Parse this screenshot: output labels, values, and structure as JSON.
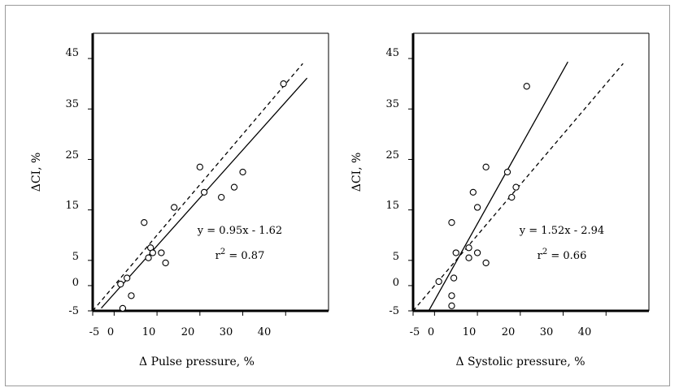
{
  "chart_data": [
    {
      "type": "scatter",
      "title": "",
      "xlabel": "Δ Pulse pressure, %",
      "ylabel": "ΔCI, %",
      "xlim": [
        -5,
        50
      ],
      "ylim": [
        -5,
        50
      ],
      "xticks": [
        -5,
        0,
        10,
        20,
        30,
        40
      ],
      "yticks": [
        -5,
        0,
        5,
        15,
        25,
        35,
        45
      ],
      "grid": false,
      "points": [
        {
          "x": 1.5,
          "y": 0.3
        },
        {
          "x": 2.0,
          "y": -4.5
        },
        {
          "x": 3.0,
          "y": 1.5
        },
        {
          "x": 4.0,
          "y": -2.0
        },
        {
          "x": 7.0,
          "y": 12.5
        },
        {
          "x": 8.0,
          "y": 5.5
        },
        {
          "x": 8.5,
          "y": 7.5
        },
        {
          "x": 9.0,
          "y": 6.5
        },
        {
          "x": 11.0,
          "y": 6.5
        },
        {
          "x": 12.0,
          "y": 4.5
        },
        {
          "x": 14.0,
          "y": 15.5
        },
        {
          "x": 20.0,
          "y": 23.5
        },
        {
          "x": 21.0,
          "y": 18.5
        },
        {
          "x": 25.0,
          "y": 17.5
        },
        {
          "x": 28.0,
          "y": 19.5
        },
        {
          "x": 30.0,
          "y": 22.5
        },
        {
          "x": 39.5,
          "y": 40.0
        }
      ],
      "fit_line": {
        "slope": 0.95,
        "intercept": -1.62,
        "x_range": [
          -3,
          45
        ],
        "style": "solid"
      },
      "identity_line": {
        "x_range": [
          -5,
          44
        ],
        "style": "dashed"
      },
      "annotations": [
        "y = 0.95x - 1.62",
        "r",
        "2",
        " = 0.87"
      ]
    },
    {
      "type": "scatter",
      "title": "",
      "xlabel": "Δ Systolic pressure, %",
      "ylabel": "ΔCI, %",
      "xlim": [
        -5,
        50
      ],
      "ylim": [
        -5,
        50
      ],
      "xticks": [
        -5,
        0,
        10,
        20,
        30,
        40
      ],
      "yticks": [
        -5,
        0,
        5,
        15,
        25,
        35,
        45
      ],
      "grid": false,
      "points": [
        {
          "x": 1.0,
          "y": 0.8
        },
        {
          "x": 4.0,
          "y": -2.0
        },
        {
          "x": 4.0,
          "y": -4.0
        },
        {
          "x": 4.0,
          "y": 12.5
        },
        {
          "x": 4.5,
          "y": 1.5
        },
        {
          "x": 5.0,
          "y": 6.5
        },
        {
          "x": 8.0,
          "y": 5.5
        },
        {
          "x": 8.0,
          "y": 7.5
        },
        {
          "x": 9.0,
          "y": 18.5
        },
        {
          "x": 10.0,
          "y": 15.5
        },
        {
          "x": 10.0,
          "y": 6.5
        },
        {
          "x": 12.0,
          "y": 4.5
        },
        {
          "x": 12.0,
          "y": 23.5
        },
        {
          "x": 17.0,
          "y": 22.5
        },
        {
          "x": 18.0,
          "y": 17.5
        },
        {
          "x": 19.0,
          "y": 19.5
        },
        {
          "x": 21.5,
          "y": 39.5
        }
      ],
      "fit_line": {
        "slope": 1.52,
        "intercept": -2.94,
        "x_range": [
          -1.4,
          31.1
        ],
        "style": "solid"
      },
      "identity_line": {
        "x_range": [
          -5,
          44
        ],
        "style": "dashed"
      },
      "annotations": [
        "y = 1.52x - 2.94",
        "r",
        "2",
        " = 0.66"
      ]
    }
  ]
}
